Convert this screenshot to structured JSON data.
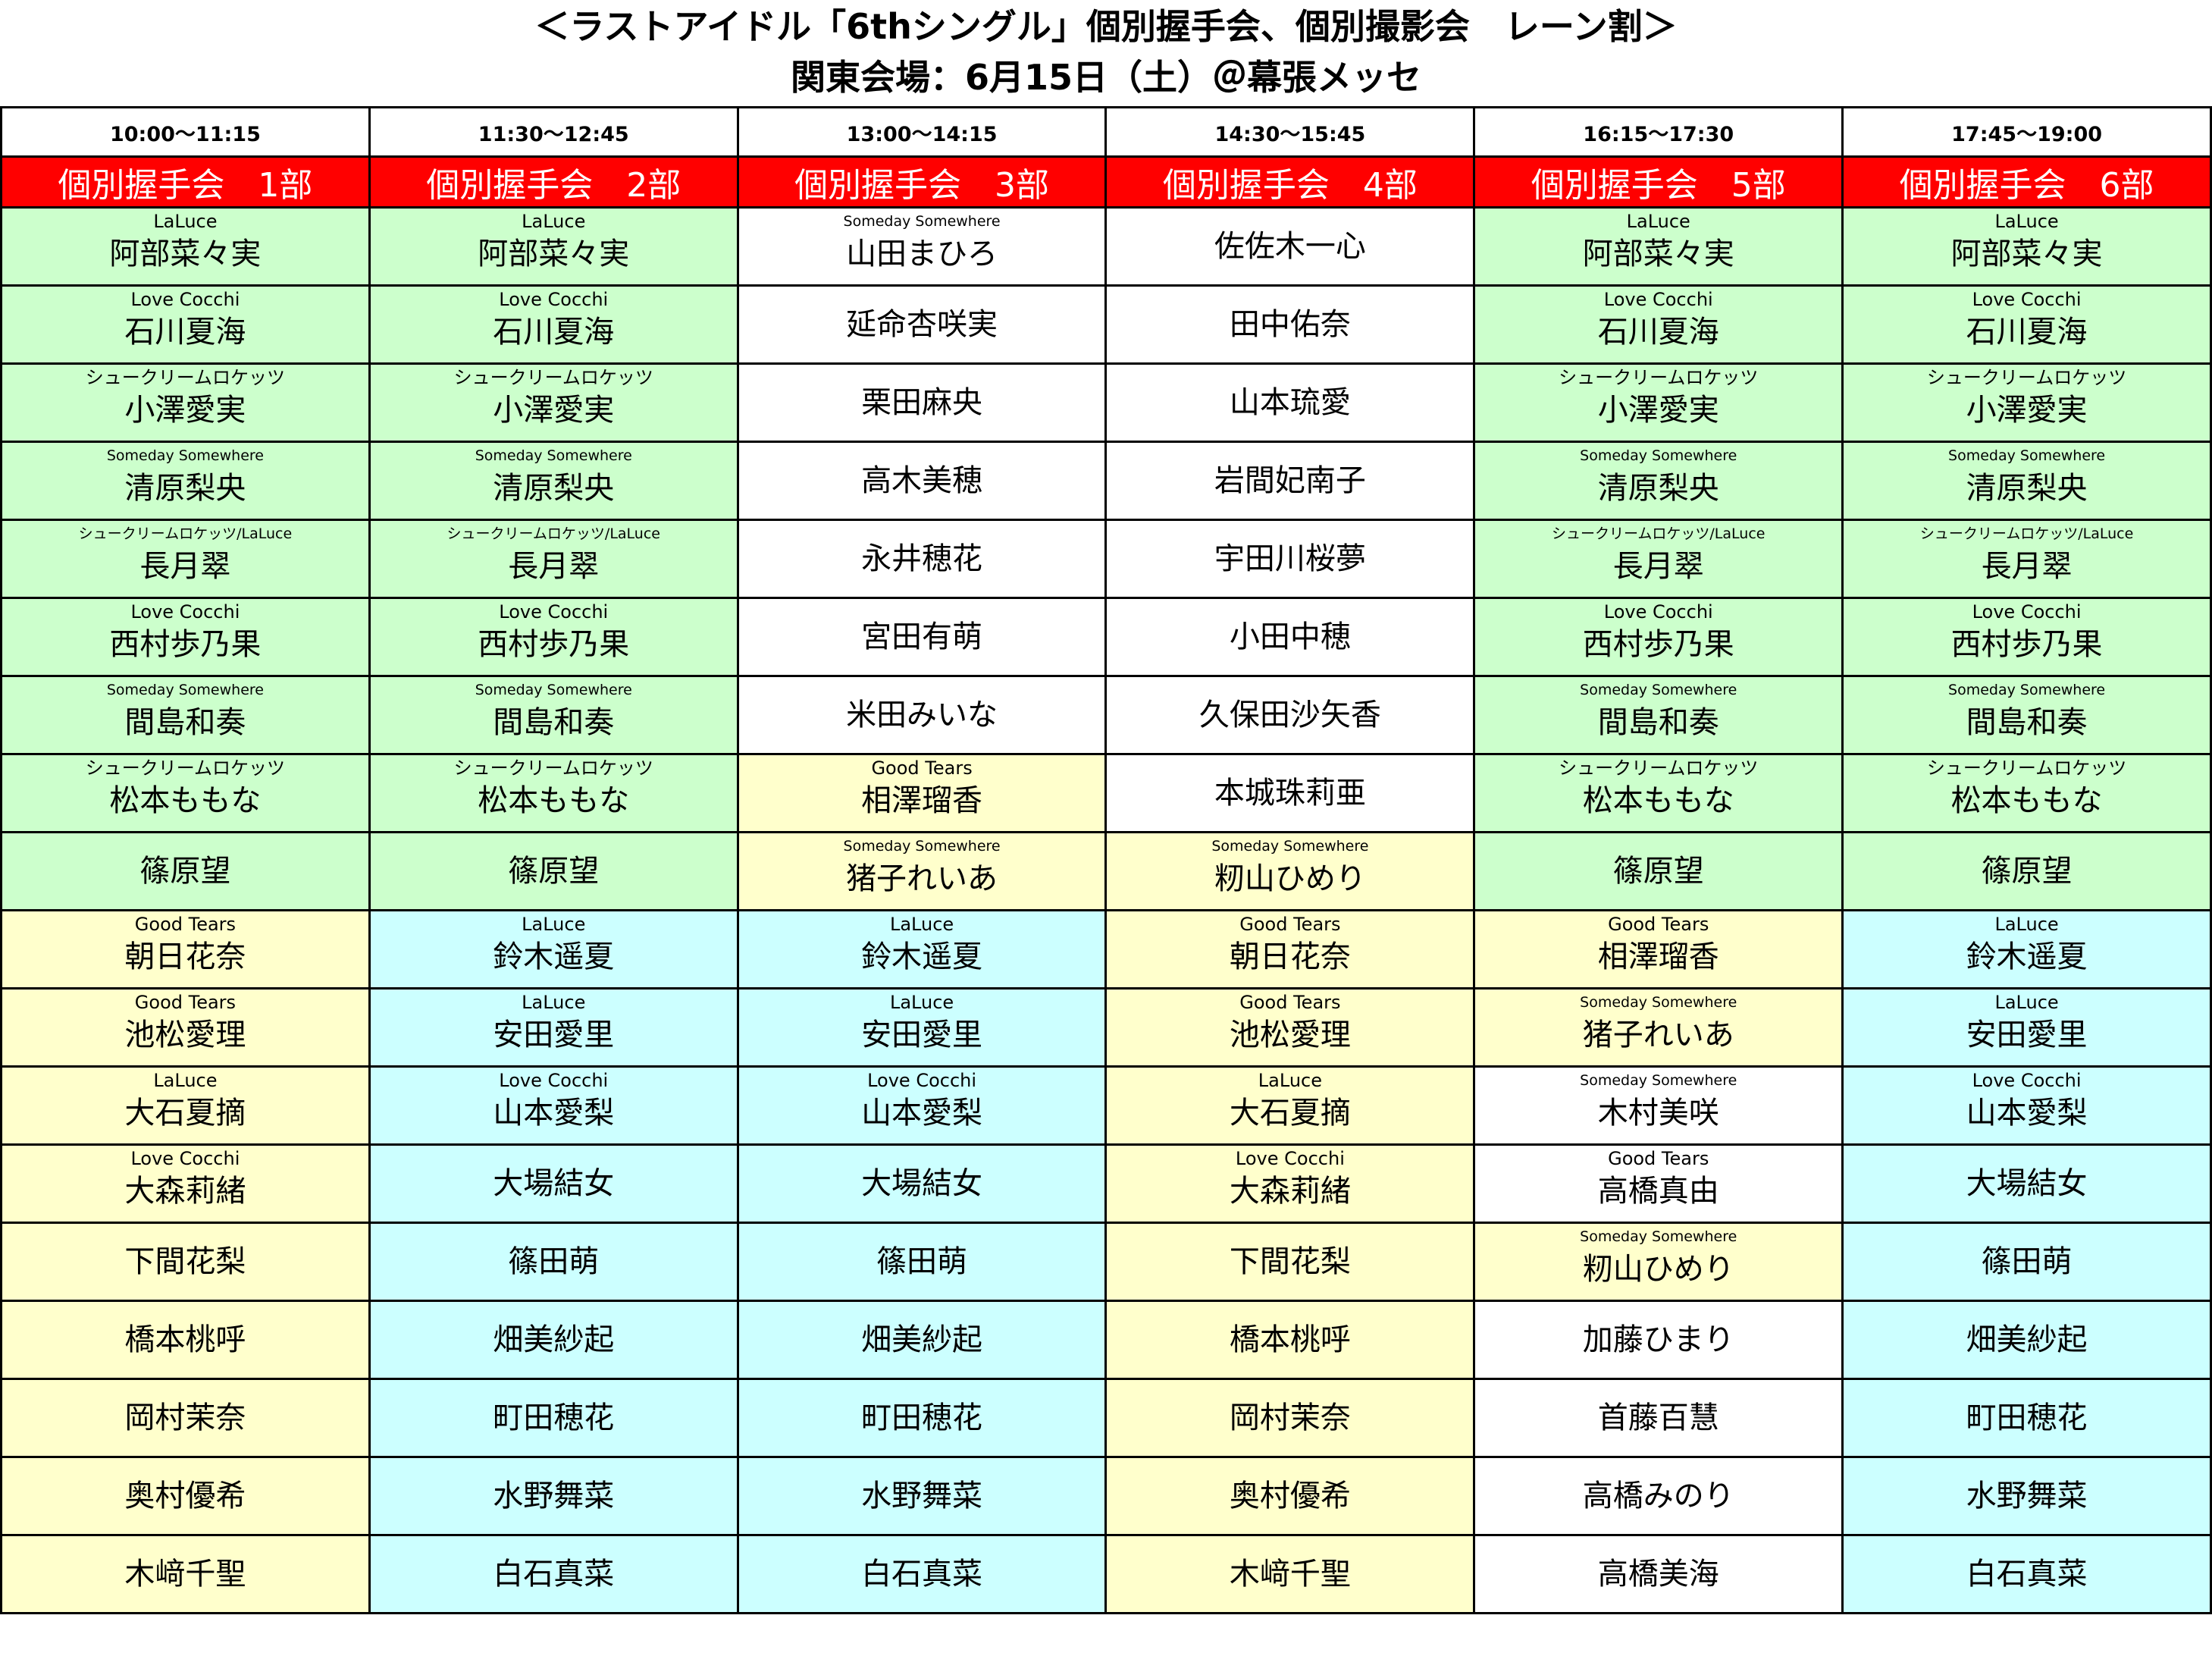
{
  "title": {
    "line1": "＜ラストアイドル「6thシングル」個別握手会、個別撮影会　レーン割＞",
    "line2": "関東会場：6月15日（土）＠幕張メッセ"
  },
  "colors": {
    "G": "#ccffcc",
    "Y": "#ffffcc",
    "C": "#ccffff",
    "W": "#ffffff",
    "header_red": "#ff0000"
  },
  "columns": [
    {
      "time": "10:00～11:15",
      "label": "個別握手会　1部",
      "cells": [
        {
          "g": "LaLuce",
          "n": "阿部菜々実",
          "c": "G"
        },
        {
          "g": "Love Cocchi",
          "n": "石川夏海",
          "c": "G"
        },
        {
          "g": "シュークリームロケッツ",
          "n": "小澤愛実",
          "c": "G"
        },
        {
          "g": "Someday Somewhere",
          "n": "清原梨央",
          "c": "G"
        },
        {
          "g": "シュークリームロケッツ/LaLuce",
          "n": "長月翠",
          "c": "G"
        },
        {
          "g": "Love Cocchi",
          "n": "西村歩乃果",
          "c": "G"
        },
        {
          "g": "Someday Somewhere",
          "n": "間島和奏",
          "c": "G"
        },
        {
          "g": "シュークリームロケッツ",
          "n": "松本ももな",
          "c": "G"
        },
        {
          "g": "",
          "n": "篠原望",
          "c": "G"
        },
        {
          "g": "Good Tears",
          "n": "朝日花奈",
          "c": "Y"
        },
        {
          "g": "Good Tears",
          "n": "池松愛理",
          "c": "Y"
        },
        {
          "g": "LaLuce",
          "n": "大石夏摘",
          "c": "Y"
        },
        {
          "g": "Love Cocchi",
          "n": "大森莉緒",
          "c": "Y"
        },
        {
          "g": "",
          "n": "下間花梨",
          "c": "Y"
        },
        {
          "g": "",
          "n": "橋本桃呼",
          "c": "Y"
        },
        {
          "g": "",
          "n": "岡村茉奈",
          "c": "Y"
        },
        {
          "g": "",
          "n": "奥村優希",
          "c": "Y"
        },
        {
          "g": "",
          "n": "木﨑千聖",
          "c": "Y"
        }
      ]
    },
    {
      "time": "11:30～12:45",
      "label": "個別握手会　2部",
      "cells": [
        {
          "g": "LaLuce",
          "n": "阿部菜々実",
          "c": "G"
        },
        {
          "g": "Love Cocchi",
          "n": "石川夏海",
          "c": "G"
        },
        {
          "g": "シュークリームロケッツ",
          "n": "小澤愛実",
          "c": "G"
        },
        {
          "g": "Someday Somewhere",
          "n": "清原梨央",
          "c": "G"
        },
        {
          "g": "シュークリームロケッツ/LaLuce",
          "n": "長月翠",
          "c": "G"
        },
        {
          "g": "Love Cocchi",
          "n": "西村歩乃果",
          "c": "G"
        },
        {
          "g": "Someday Somewhere",
          "n": "間島和奏",
          "c": "G"
        },
        {
          "g": "シュークリームロケッツ",
          "n": "松本ももな",
          "c": "G"
        },
        {
          "g": "",
          "n": "篠原望",
          "c": "G"
        },
        {
          "g": "LaLuce",
          "n": "鈴木遥夏",
          "c": "C"
        },
        {
          "g": "LaLuce",
          "n": "安田愛里",
          "c": "C"
        },
        {
          "g": "Love Cocchi",
          "n": "山本愛梨",
          "c": "C"
        },
        {
          "g": "",
          "n": "大場結女",
          "c": "C"
        },
        {
          "g": "",
          "n": "篠田萌",
          "c": "C"
        },
        {
          "g": "",
          "n": "畑美紗起",
          "c": "C"
        },
        {
          "g": "",
          "n": "町田穂花",
          "c": "C"
        },
        {
          "g": "",
          "n": "水野舞菜",
          "c": "C"
        },
        {
          "g": "",
          "n": "白石真菜",
          "c": "C"
        }
      ]
    },
    {
      "time": "13:00～14:15",
      "label": "個別握手会　3部",
      "cells": [
        {
          "g": "Someday Somewhere",
          "n": "山田まひろ",
          "c": "W"
        },
        {
          "g": "",
          "n": "延命杏咲実",
          "c": "W"
        },
        {
          "g": "",
          "n": "栗田麻央",
          "c": "W"
        },
        {
          "g": "",
          "n": "高木美穂",
          "c": "W"
        },
        {
          "g": "",
          "n": "永井穂花",
          "c": "W"
        },
        {
          "g": "",
          "n": "宮田有萌",
          "c": "W"
        },
        {
          "g": "",
          "n": "米田みいな",
          "c": "W"
        },
        {
          "g": "Good Tears",
          "n": "相澤瑠香",
          "c": "Y"
        },
        {
          "g": "Someday Somewhere",
          "n": "猪子れいあ",
          "c": "Y"
        },
        {
          "g": "LaLuce",
          "n": "鈴木遥夏",
          "c": "C"
        },
        {
          "g": "LaLuce",
          "n": "安田愛里",
          "c": "C"
        },
        {
          "g": "Love Cocchi",
          "n": "山本愛梨",
          "c": "C"
        },
        {
          "g": "",
          "n": "大場結女",
          "c": "C"
        },
        {
          "g": "",
          "n": "篠田萌",
          "c": "C"
        },
        {
          "g": "",
          "n": "畑美紗起",
          "c": "C"
        },
        {
          "g": "",
          "n": "町田穂花",
          "c": "C"
        },
        {
          "g": "",
          "n": "水野舞菜",
          "c": "C"
        },
        {
          "g": "",
          "n": "白石真菜",
          "c": "C"
        }
      ]
    },
    {
      "time": "14:30～15:45",
      "label": "個別握手会　4部",
      "cells": [
        {
          "g": "",
          "n": "佐佐木一心",
          "c": "W"
        },
        {
          "g": "",
          "n": "田中佑奈",
          "c": "W"
        },
        {
          "g": "",
          "n": "山本琉愛",
          "c": "W"
        },
        {
          "g": "",
          "n": "岩間妃南子",
          "c": "W"
        },
        {
          "g": "",
          "n": "宇田川桜夢",
          "c": "W"
        },
        {
          "g": "",
          "n": "小田中穂",
          "c": "W"
        },
        {
          "g": "",
          "n": "久保田沙矢香",
          "c": "W"
        },
        {
          "g": "",
          "n": "本城珠莉亜",
          "c": "W"
        },
        {
          "g": "Someday Somewhere",
          "n": "籾山ひめり",
          "c": "Y"
        },
        {
          "g": "Good Tears",
          "n": "朝日花奈",
          "c": "Y"
        },
        {
          "g": "Good Tears",
          "n": "池松愛理",
          "c": "Y"
        },
        {
          "g": "LaLuce",
          "n": "大石夏摘",
          "c": "Y"
        },
        {
          "g": "Love Cocchi",
          "n": "大森莉緒",
          "c": "Y"
        },
        {
          "g": "",
          "n": "下間花梨",
          "c": "Y"
        },
        {
          "g": "",
          "n": "橋本桃呼",
          "c": "Y"
        },
        {
          "g": "",
          "n": "岡村茉奈",
          "c": "Y"
        },
        {
          "g": "",
          "n": "奥村優希",
          "c": "Y"
        },
        {
          "g": "",
          "n": "木﨑千聖",
          "c": "Y"
        }
      ]
    },
    {
      "time": "16:15～17:30",
      "label": "個別握手会　5部",
      "cells": [
        {
          "g": "LaLuce",
          "n": "阿部菜々実",
          "c": "G"
        },
        {
          "g": "Love Cocchi",
          "n": "石川夏海",
          "c": "G"
        },
        {
          "g": "シュークリームロケッツ",
          "n": "小澤愛実",
          "c": "G"
        },
        {
          "g": "Someday Somewhere",
          "n": "清原梨央",
          "c": "G"
        },
        {
          "g": "シュークリームロケッツ/LaLuce",
          "n": "長月翠",
          "c": "G"
        },
        {
          "g": "Love Cocchi",
          "n": "西村歩乃果",
          "c": "G"
        },
        {
          "g": "Someday Somewhere",
          "n": "間島和奏",
          "c": "G"
        },
        {
          "g": "シュークリームロケッツ",
          "n": "松本ももな",
          "c": "G"
        },
        {
          "g": "",
          "n": "篠原望",
          "c": "G"
        },
        {
          "g": "Good Tears",
          "n": "相澤瑠香",
          "c": "Y"
        },
        {
          "g": "Someday Somewhere",
          "n": "猪子れいあ",
          "c": "Y"
        },
        {
          "g": "Someday Somewhere",
          "n": "木村美咲",
          "c": "W"
        },
        {
          "g": "Good Tears",
          "n": "高橋真由",
          "c": "W"
        },
        {
          "g": "Someday Somewhere",
          "n": "籾山ひめり",
          "c": "Y"
        },
        {
          "g": "",
          "n": "加藤ひまり",
          "c": "W"
        },
        {
          "g": "",
          "n": "首藤百慧",
          "c": "W"
        },
        {
          "g": "",
          "n": "高橋みのり",
          "c": "W"
        },
        {
          "g": "",
          "n": "高橋美海",
          "c": "W"
        }
      ]
    },
    {
      "time": "17:45～19:00",
      "label": "個別握手会　6部",
      "cells": [
        {
          "g": "LaLuce",
          "n": "阿部菜々実",
          "c": "G"
        },
        {
          "g": "Love Cocchi",
          "n": "石川夏海",
          "c": "G"
        },
        {
          "g": "シュークリームロケッツ",
          "n": "小澤愛実",
          "c": "G"
        },
        {
          "g": "Someday Somewhere",
          "n": "清原梨央",
          "c": "G"
        },
        {
          "g": "シュークリームロケッツ/LaLuce",
          "n": "長月翠",
          "c": "G"
        },
        {
          "g": "Love Cocchi",
          "n": "西村歩乃果",
          "c": "G"
        },
        {
          "g": "Someday Somewhere",
          "n": "間島和奏",
          "c": "G"
        },
        {
          "g": "シュークリームロケッツ",
          "n": "松本ももな",
          "c": "G"
        },
        {
          "g": "",
          "n": "篠原望",
          "c": "G"
        },
        {
          "g": "LaLuce",
          "n": "鈴木遥夏",
          "c": "C"
        },
        {
          "g": "LaLuce",
          "n": "安田愛里",
          "c": "C"
        },
        {
          "g": "Love Cocchi",
          "n": "山本愛梨",
          "c": "C"
        },
        {
          "g": "",
          "n": "大場結女",
          "c": "C"
        },
        {
          "g": "",
          "n": "篠田萌",
          "c": "C"
        },
        {
          "g": "",
          "n": "畑美紗起",
          "c": "C"
        },
        {
          "g": "",
          "n": "町田穂花",
          "c": "C"
        },
        {
          "g": "",
          "n": "水野舞菜",
          "c": "C"
        },
        {
          "g": "",
          "n": "白石真菜",
          "c": "C"
        }
      ]
    }
  ]
}
